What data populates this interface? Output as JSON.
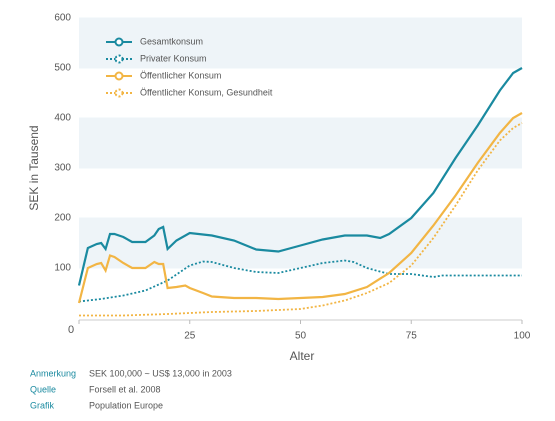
{
  "chart_data": {
    "type": "line",
    "xlabel": "Alter",
    "ylabel": "SEK in Tausend",
    "xlim": [
      0,
      100
    ],
    "ylim": [
      0,
      600
    ],
    "xticks": [
      0,
      25,
      50,
      75,
      100
    ],
    "yticks": [
      100,
      200,
      300,
      400,
      500,
      600
    ],
    "series": [
      {
        "name": "Gesamtkonsum",
        "color": "#1a8aa0",
        "style": "solid",
        "x": [
          0,
          2,
          4,
          5,
          6,
          7,
          8,
          10,
          12,
          15,
          17,
          18,
          19,
          20,
          22,
          25,
          30,
          35,
          40,
          45,
          50,
          55,
          60,
          65,
          68,
          70,
          75,
          80,
          85,
          90,
          95,
          98,
          100
        ],
        "values": [
          65,
          140,
          148,
          150,
          138,
          168,
          168,
          162,
          152,
          152,
          165,
          178,
          182,
          138,
          155,
          170,
          165,
          155,
          137,
          133,
          145,
          157,
          165,
          165,
          160,
          168,
          200,
          250,
          320,
          385,
          455,
          490,
          500
        ]
      },
      {
        "name": "Privater Konsum",
        "color": "#1a8aa0",
        "style": "dotted",
        "x": [
          0,
          5,
          10,
          15,
          20,
          25,
          28,
          30,
          35,
          40,
          45,
          50,
          55,
          60,
          62,
          65,
          70,
          75,
          80,
          82,
          85,
          90,
          95,
          100
        ],
        "values": [
          33,
          38,
          45,
          55,
          75,
          105,
          113,
          112,
          100,
          92,
          90,
          100,
          110,
          115,
          112,
          100,
          88,
          88,
          82,
          85,
          85,
          85,
          85,
          85
        ]
      },
      {
        "name": "Öffentlicher Konsum",
        "color": "#f2b544",
        "style": "solid",
        "x": [
          0,
          2,
          4,
          5,
          6,
          7,
          8,
          10,
          12,
          15,
          17,
          18,
          19,
          20,
          22,
          24,
          25,
          28,
          30,
          35,
          40,
          45,
          50,
          55,
          60,
          65,
          70,
          75,
          80,
          85,
          90,
          95,
          98,
          100
        ],
        "values": [
          30,
          100,
          108,
          110,
          95,
          125,
          122,
          110,
          100,
          100,
          112,
          108,
          108,
          60,
          62,
          65,
          60,
          50,
          43,
          40,
          40,
          38,
          40,
          42,
          48,
          62,
          90,
          130,
          185,
          245,
          310,
          370,
          400,
          410
        ]
      },
      {
        "name": "Öffentlicher Konsum, Gesundheit",
        "color": "#f2b544",
        "style": "dotted",
        "x": [
          0,
          10,
          20,
          30,
          40,
          50,
          55,
          60,
          65,
          70,
          75,
          80,
          85,
          90,
          95,
          98,
          100
        ],
        "values": [
          5,
          5,
          8,
          12,
          14,
          18,
          25,
          35,
          50,
          70,
          105,
          160,
          225,
          295,
          355,
          380,
          390
        ]
      }
    ],
    "notes": [
      {
        "label": "Anmerkung",
        "text": "SEK 100,000 ~ US$ 13,000 in 2003"
      },
      {
        "label": "Quelle",
        "text": "Forsell et al. 2008"
      },
      {
        "label": "Grafik",
        "text": "Population Europe"
      }
    ]
  }
}
